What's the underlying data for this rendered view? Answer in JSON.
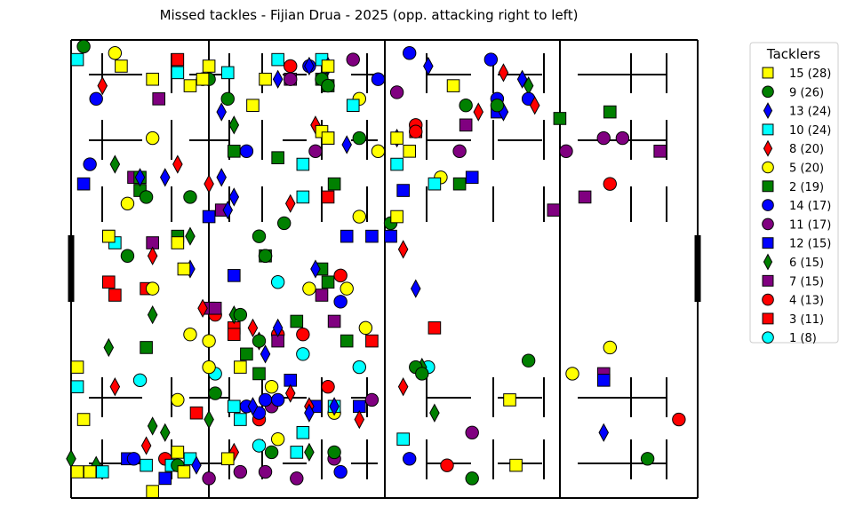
{
  "chart_data": {
    "type": "scatter",
    "title": "Missed tackles - Fijian Drua - 2025  (opp. attacking right to left)",
    "legend_title": "Tacklers",
    "legend_position": "right",
    "grid": false,
    "xlim": [
      0,
      100
    ],
    "ylim": [
      0,
      70
    ],
    "series": [
      {
        "name": "15 (28)",
        "marker": "square",
        "color": "#ffff00",
        "points": [
          [
            8,
            66
          ],
          [
            13,
            64
          ],
          [
            19,
            63
          ],
          [
            22,
            66
          ],
          [
            21,
            64
          ],
          [
            31,
            64
          ],
          [
            29,
            60
          ],
          [
            41,
            66
          ],
          [
            40,
            56
          ],
          [
            41,
            55
          ],
          [
            52,
            55
          ],
          [
            54,
            53
          ],
          [
            52,
            43
          ],
          [
            17,
            39
          ],
          [
            6,
            40
          ],
          [
            18,
            35
          ],
          [
            1,
            20
          ],
          [
            27,
            20
          ],
          [
            2,
            12
          ],
          [
            17,
            7
          ],
          [
            25,
            6
          ],
          [
            18,
            4
          ],
          [
            1,
            4
          ],
          [
            3,
            4
          ],
          [
            13,
            1
          ],
          [
            70,
            15
          ],
          [
            61,
            63
          ],
          [
            71,
            5
          ]
        ]
      },
      {
        "name": "9 (26)",
        "marker": "circle",
        "color": "#008000",
        "points": [
          [
            2,
            69
          ],
          [
            22,
            64
          ],
          [
            25,
            61
          ],
          [
            40,
            64
          ],
          [
            41,
            63
          ],
          [
            46,
            55
          ],
          [
            12,
            46
          ],
          [
            19,
            46
          ],
          [
            30,
            40
          ],
          [
            34,
            42
          ],
          [
            31,
            37
          ],
          [
            27,
            28
          ],
          [
            9,
            37
          ],
          [
            30,
            24
          ],
          [
            23,
            16
          ],
          [
            17,
            5
          ],
          [
            42,
            7
          ],
          [
            32,
            7
          ],
          [
            51,
            42
          ],
          [
            55,
            20
          ],
          [
            56,
            19
          ],
          [
            63,
            60
          ],
          [
            68,
            60
          ],
          [
            73,
            21
          ],
          [
            64,
            3
          ],
          [
            92,
            6
          ]
        ]
      },
      {
        "name": "13 (24)",
        "marker": "diamond",
        "color": "#0000ff",
        "points": [
          [
            33,
            64
          ],
          [
            38,
            66
          ],
          [
            41,
            66
          ],
          [
            57,
            66
          ],
          [
            72,
            64
          ],
          [
            69,
            59
          ],
          [
            24,
            59
          ],
          [
            24,
            49
          ],
          [
            44,
            54
          ],
          [
            52,
            55
          ],
          [
            11,
            49
          ],
          [
            15,
            49
          ],
          [
            26,
            46
          ],
          [
            25,
            44
          ],
          [
            19,
            35
          ],
          [
            39,
            35
          ],
          [
            55,
            32
          ],
          [
            33,
            26
          ],
          [
            31,
            22
          ],
          [
            29,
            14
          ],
          [
            38,
            13
          ],
          [
            42,
            14
          ],
          [
            85,
            10
          ],
          [
            20,
            5
          ]
        ]
      },
      {
        "name": "10 (24)",
        "marker": "square",
        "color": "#00ffff",
        "points": [
          [
            1,
            67
          ],
          [
            17,
            65
          ],
          [
            25,
            65
          ],
          [
            33,
            67
          ],
          [
            40,
            67
          ],
          [
            45,
            60
          ],
          [
            41,
            55
          ],
          [
            37,
            51
          ],
          [
            37,
            46
          ],
          [
            6,
            40
          ],
          [
            7,
            39
          ],
          [
            52,
            51
          ],
          [
            58,
            48
          ],
          [
            1,
            17
          ],
          [
            26,
            14
          ],
          [
            27,
            12
          ],
          [
            37,
            10
          ],
          [
            42,
            14
          ],
          [
            36,
            7
          ],
          [
            12,
            5
          ],
          [
            19,
            6
          ],
          [
            16,
            5
          ],
          [
            5,
            4
          ],
          [
            53,
            9
          ]
        ]
      },
      {
        "name": "8 (20)",
        "marker": "diamond",
        "color": "#ff0000",
        "points": [
          [
            5,
            63
          ],
          [
            17,
            51
          ],
          [
            22,
            48
          ],
          [
            35,
            45
          ],
          [
            39,
            57
          ],
          [
            13,
            37
          ],
          [
            21,
            29
          ],
          [
            29,
            26
          ],
          [
            30,
            24
          ],
          [
            35,
            16
          ],
          [
            7,
            17
          ],
          [
            38,
            14
          ],
          [
            46,
            12
          ],
          [
            53,
            38
          ],
          [
            53,
            17
          ],
          [
            65,
            59
          ],
          [
            69,
            65
          ],
          [
            74,
            60
          ],
          [
            26,
            7
          ],
          [
            12,
            8
          ]
        ]
      },
      {
        "name": "5 (20)",
        "marker": "circle",
        "color": "#ffff00",
        "points": [
          [
            7,
            68
          ],
          [
            46,
            61
          ],
          [
            13,
            55
          ],
          [
            49,
            53
          ],
          [
            9,
            45
          ],
          [
            46,
            43
          ],
          [
            44,
            32
          ],
          [
            38,
            32
          ],
          [
            47,
            26
          ],
          [
            13,
            32
          ],
          [
            19,
            25
          ],
          [
            22,
            24
          ],
          [
            22,
            20
          ],
          [
            32,
            17
          ],
          [
            17,
            15
          ],
          [
            42,
            13
          ],
          [
            33,
            9
          ],
          [
            59,
            49
          ],
          [
            86,
            23
          ],
          [
            80,
            19
          ]
        ]
      },
      {
        "name": "2 (19)",
        "marker": "square",
        "color": "#008000",
        "points": [
          [
            40,
            64
          ],
          [
            41,
            63
          ],
          [
            26,
            53
          ],
          [
            33,
            52
          ],
          [
            42,
            48
          ],
          [
            11,
            49
          ],
          [
            11,
            47
          ],
          [
            17,
            40
          ],
          [
            31,
            37
          ],
          [
            40,
            35
          ],
          [
            41,
            33
          ],
          [
            12,
            23
          ],
          [
            28,
            22
          ],
          [
            30,
            19
          ],
          [
            44,
            24
          ],
          [
            62,
            48
          ],
          [
            78,
            58
          ],
          [
            86,
            59
          ],
          [
            36,
            27
          ]
        ]
      },
      {
        "name": "14 (17)",
        "marker": "circle",
        "color": "#0000ff",
        "points": [
          [
            4,
            61
          ],
          [
            3,
            51
          ],
          [
            28,
            53
          ],
          [
            38,
            66
          ],
          [
            49,
            64
          ],
          [
            54,
            68
          ],
          [
            67,
            67
          ],
          [
            68,
            61
          ],
          [
            73,
            61
          ],
          [
            43,
            30
          ],
          [
            31,
            15
          ],
          [
            28,
            14
          ],
          [
            30,
            13
          ],
          [
            43,
            4
          ],
          [
            10,
            6
          ],
          [
            54,
            6
          ],
          [
            33,
            15
          ]
        ]
      },
      {
        "name": "11 (17)",
        "marker": "circle",
        "color": "#800080",
        "points": [
          [
            21,
            64
          ],
          [
            35,
            64
          ],
          [
            45,
            67
          ],
          [
            52,
            62
          ],
          [
            39,
            53
          ],
          [
            62,
            53
          ],
          [
            79,
            53
          ],
          [
            85,
            55
          ],
          [
            88,
            55
          ],
          [
            27,
            4
          ],
          [
            31,
            4
          ],
          [
            36,
            3
          ],
          [
            42,
            6
          ],
          [
            48,
            15
          ],
          [
            64,
            10
          ],
          [
            32,
            14
          ],
          [
            22,
            3
          ]
        ]
      },
      {
        "name": "12 (15)",
        "marker": "square",
        "color": "#0000ff",
        "points": [
          [
            2,
            48
          ],
          [
            22,
            43
          ],
          [
            26,
            34
          ],
          [
            44,
            40
          ],
          [
            48,
            40
          ],
          [
            51,
            40
          ],
          [
            53,
            47
          ],
          [
            64,
            49
          ],
          [
            68,
            59
          ],
          [
            35,
            18
          ],
          [
            39,
            14
          ],
          [
            46,
            14
          ],
          [
            85,
            18
          ],
          [
            15,
            3
          ],
          [
            9,
            6
          ]
        ]
      },
      {
        "name": "6 (15)",
        "marker": "diamond",
        "color": "#008000",
        "points": [
          [
            26,
            57
          ],
          [
            7,
            51
          ],
          [
            19,
            40
          ],
          [
            13,
            28
          ],
          [
            26,
            28
          ],
          [
            6,
            23
          ],
          [
            56,
            20
          ],
          [
            58,
            13
          ],
          [
            22,
            12
          ],
          [
            13,
            11
          ],
          [
            15,
            10
          ],
          [
            4,
            5
          ],
          [
            0,
            6
          ],
          [
            38,
            7
          ],
          [
            73,
            63
          ]
        ]
      },
      {
        "name": "7 (15)",
        "marker": "square",
        "color": "#800080",
        "points": [
          [
            14,
            61
          ],
          [
            35,
            64
          ],
          [
            63,
            57
          ],
          [
            10,
            49
          ],
          [
            24,
            44
          ],
          [
            13,
            39
          ],
          [
            22,
            29
          ],
          [
            23,
            29
          ],
          [
            40,
            31
          ],
          [
            42,
            27
          ],
          [
            33,
            24
          ],
          [
            85,
            19
          ],
          [
            77,
            44
          ],
          [
            94,
            53
          ],
          [
            82,
            46
          ]
        ]
      },
      {
        "name": "4 (13)",
        "marker": "circle",
        "color": "#ff0000",
        "points": [
          [
            35,
            66
          ],
          [
            55,
            57
          ],
          [
            55,
            56
          ],
          [
            86,
            48
          ],
          [
            43,
            34
          ],
          [
            33,
            25
          ],
          [
            37,
            25
          ],
          [
            23,
            28
          ],
          [
            41,
            17
          ],
          [
            30,
            12
          ],
          [
            15,
            6
          ],
          [
            60,
            5
          ],
          [
            97,
            12
          ]
        ]
      },
      {
        "name": "3 (11)",
        "marker": "square",
        "color": "#ff0000",
        "points": [
          [
            17,
            67
          ],
          [
            41,
            46
          ],
          [
            6,
            33
          ],
          [
            7,
            31
          ],
          [
            12,
            32
          ],
          [
            26,
            26
          ],
          [
            26,
            25
          ],
          [
            55,
            56
          ],
          [
            58,
            26
          ],
          [
            48,
            24
          ],
          [
            20,
            13
          ]
        ]
      },
      {
        "name": "1 (8)",
        "marker": "circle",
        "color": "#00ffff",
        "points": [
          [
            31,
            37
          ],
          [
            33,
            33
          ],
          [
            37,
            22
          ],
          [
            46,
            20
          ],
          [
            57,
            20
          ],
          [
            23,
            19
          ],
          [
            11,
            18
          ],
          [
            30,
            8
          ]
        ]
      }
    ]
  }
}
